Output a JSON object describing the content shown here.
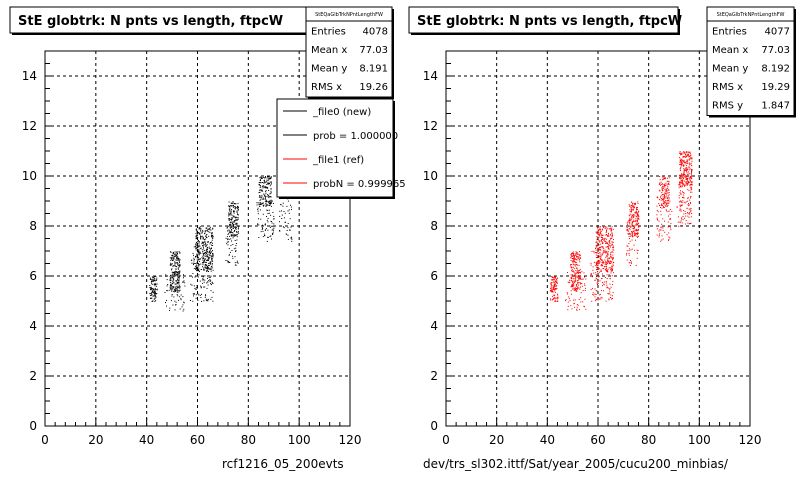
{
  "chart_data": [
    {
      "type": "scatter",
      "title": "StE globtrk: N pnts vs length, ftpcW",
      "stats_name": "StEQaGlbTrkNPntLengthFW",
      "stats": [
        {
          "label": "Entries",
          "value": "4078"
        },
        {
          "label": "Mean x",
          "value": "77.03"
        },
        {
          "label": "Mean y",
          "value": "8.191"
        },
        {
          "label": "RMS x",
          "value": "19.26"
        }
      ],
      "legend": [
        {
          "label": "_file0 (new)",
          "color": "#000000"
        },
        {
          "label": "prob = 1.000000",
          "color": "#000000"
        },
        {
          "label": "_file1 (ref)",
          "color": "#ff0000"
        },
        {
          "label": "probN = 0.999965",
          "color": "#ff0000"
        }
      ],
      "xlabel": "rcf1216_05_200evts",
      "xlim": [
        0,
        120
      ],
      "ylim": [
        0,
        15
      ],
      "xticks": [
        0,
        20,
        40,
        60,
        80,
        100,
        120
      ],
      "yticks": [
        0,
        2,
        4,
        6,
        8,
        10,
        12,
        14
      ],
      "grid": true,
      "point_color": "#000000",
      "clusters": [
        {
          "x": [
            41,
            44
          ],
          "y": [
            5,
            6
          ],
          "density": 1.0
        },
        {
          "x": [
            49,
            53
          ],
          "y": [
            5.4,
            7
          ],
          "density": 0.9
        },
        {
          "x": [
            47,
            55
          ],
          "y": [
            4.6,
            6.2
          ],
          "density": 0.15
        },
        {
          "x": [
            59,
            66
          ],
          "y": [
            6.2,
            8
          ],
          "density": 0.7
        },
        {
          "x": [
            57,
            66
          ],
          "y": [
            5,
            7.2
          ],
          "density": 0.2
        },
        {
          "x": [
            72,
            76
          ],
          "y": [
            7.6,
            9
          ],
          "density": 0.8
        },
        {
          "x": [
            71,
            76
          ],
          "y": [
            6.4,
            8.2
          ],
          "density": 0.2
        },
        {
          "x": [
            84,
            89
          ],
          "y": [
            8.8,
            10
          ],
          "density": 0.7
        },
        {
          "x": [
            83,
            90
          ],
          "y": [
            7.4,
            9.2
          ],
          "density": 0.2
        },
        {
          "x": [
            93,
            97
          ],
          "y": [
            9,
            10
          ],
          "density": 0.3
        },
        {
          "x": [
            92,
            97
          ],
          "y": [
            7.4,
            9
          ],
          "density": 0.15
        }
      ]
    },
    {
      "type": "scatter",
      "title": "StE globtrk: N pnts vs length, ftpcW",
      "stats_name": "StEQaGlbTrkNPntLengthFW",
      "stats": [
        {
          "label": "Entries",
          "value": "4077"
        },
        {
          "label": "Mean x",
          "value": "77.03"
        },
        {
          "label": "Mean y",
          "value": "8.192"
        },
        {
          "label": "RMS x",
          "value": "19.29"
        },
        {
          "label": "RMS y",
          "value": "1.847"
        }
      ],
      "xlabel": "dev/trs_sl302.ittf/Sat/year_2005/cucu200_minbias/",
      "xlim": [
        0,
        120
      ],
      "ylim": [
        0,
        15
      ],
      "xticks": [
        0,
        20,
        40,
        60,
        80,
        100,
        120
      ],
      "yticks": [
        0,
        2,
        4,
        6,
        8,
        10,
        12,
        14
      ],
      "grid": true,
      "point_color": "#ff0000",
      "clusters": [
        {
          "x": [
            41,
            44
          ],
          "y": [
            5,
            6
          ],
          "density": 1.0
        },
        {
          "x": [
            49,
            53
          ],
          "y": [
            5.4,
            7
          ],
          "density": 0.9
        },
        {
          "x": [
            47,
            55
          ],
          "y": [
            4.6,
            6.2
          ],
          "density": 0.15
        },
        {
          "x": [
            59,
            66
          ],
          "y": [
            6.2,
            8
          ],
          "density": 0.7
        },
        {
          "x": [
            57,
            66
          ],
          "y": [
            5,
            7.2
          ],
          "density": 0.2
        },
        {
          "x": [
            72,
            76
          ],
          "y": [
            7.6,
            9
          ],
          "density": 0.8
        },
        {
          "x": [
            71,
            76
          ],
          "y": [
            6.4,
            8.2
          ],
          "density": 0.2
        },
        {
          "x": [
            84,
            88
          ],
          "y": [
            8.8,
            10
          ],
          "density": 0.7
        },
        {
          "x": [
            83,
            89
          ],
          "y": [
            7.4,
            9.2
          ],
          "density": 0.2
        },
        {
          "x": [
            92,
            97
          ],
          "y": [
            9.6,
            11
          ],
          "density": 1.0
        },
        {
          "x": [
            91,
            97
          ],
          "y": [
            8,
            9.8
          ],
          "density": 0.3
        }
      ]
    }
  ]
}
